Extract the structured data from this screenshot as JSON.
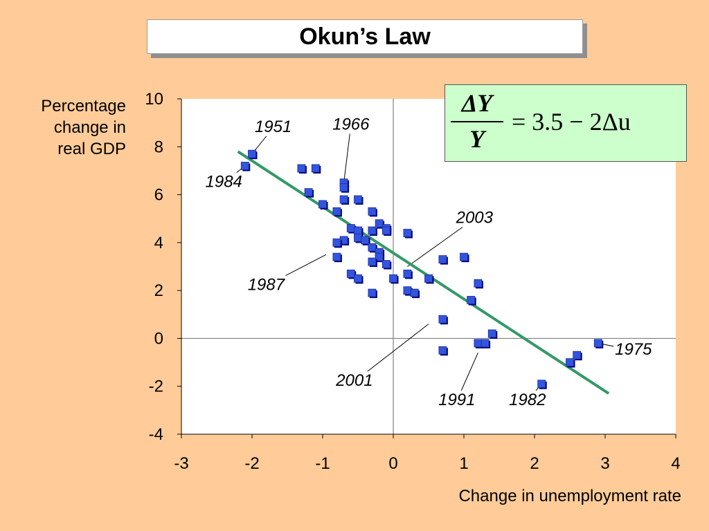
{
  "slide": {
    "title": "Okun’s Law",
    "background_color": "#FFCC99"
  },
  "formula": {
    "numerator": "ΔY",
    "denominator": "Y",
    "rhs": "= 3.5 − 2Δu",
    "box_color": "#CCFFCC"
  },
  "chart_data": {
    "type": "scatter",
    "title": "Okun’s Law",
    "xlabel": "Change in unemployment rate",
    "ylabel": "Percentage change in real GDP",
    "ylabel_lines": [
      "Percentage",
      "change in",
      "real GDP"
    ],
    "xlim": [
      -3,
      4
    ],
    "ylim": [
      -4,
      10
    ],
    "xticks": [
      "-3",
      "-2",
      "-1",
      "0",
      "1",
      "2",
      "3",
      "4"
    ],
    "yticks": [
      "10",
      "8",
      "6",
      "4",
      "2",
      "0",
      "-2",
      "-4"
    ],
    "grid": false,
    "marker_color": "#3355DD",
    "points": [
      {
        "x": -2.1,
        "y": 7.2
      },
      {
        "x": -2.0,
        "y": 7.7
      },
      {
        "x": -1.3,
        "y": 7.1
      },
      {
        "x": -1.1,
        "y": 7.1
      },
      {
        "x": -0.7,
        "y": 6.5
      },
      {
        "x": -0.7,
        "y": 6.3
      },
      {
        "x": -1.2,
        "y": 6.1
      },
      {
        "x": -0.7,
        "y": 5.8
      },
      {
        "x": -0.5,
        "y": 5.8
      },
      {
        "x": -1.0,
        "y": 5.6
      },
      {
        "x": -0.8,
        "y": 5.3
      },
      {
        "x": -0.3,
        "y": 5.3
      },
      {
        "x": -0.6,
        "y": 4.6
      },
      {
        "x": -0.5,
        "y": 4.5
      },
      {
        "x": -0.3,
        "y": 4.5
      },
      {
        "x": -0.2,
        "y": 4.8
      },
      {
        "x": -0.1,
        "y": 4.6
      },
      {
        "x": -0.1,
        "y": 4.5
      },
      {
        "x": 0.2,
        "y": 4.4
      },
      {
        "x": -0.5,
        "y": 4.2
      },
      {
        "x": -0.4,
        "y": 4.1
      },
      {
        "x": -0.7,
        "y": 4.1
      },
      {
        "x": -0.8,
        "y": 4.0
      },
      {
        "x": -0.3,
        "y": 3.8
      },
      {
        "x": -0.2,
        "y": 3.6
      },
      {
        "x": -0.2,
        "y": 3.4
      },
      {
        "x": -0.8,
        "y": 3.4
      },
      {
        "x": -0.3,
        "y": 3.2
      },
      {
        "x": -0.1,
        "y": 3.1
      },
      {
        "x": 0.7,
        "y": 3.3
      },
      {
        "x": 1.0,
        "y": 3.4
      },
      {
        "x": -0.6,
        "y": 2.7
      },
      {
        "x": -0.5,
        "y": 2.5
      },
      {
        "x": 0.0,
        "y": 2.5
      },
      {
        "x": 0.2,
        "y": 2.7
      },
      {
        "x": 0.5,
        "y": 2.5
      },
      {
        "x": 1.2,
        "y": 2.3
      },
      {
        "x": 0.2,
        "y": 2.0
      },
      {
        "x": 0.3,
        "y": 1.9
      },
      {
        "x": -0.3,
        "y": 1.9
      },
      {
        "x": 1.1,
        "y": 1.6
      },
      {
        "x": 0.7,
        "y": 0.8
      },
      {
        "x": 1.4,
        "y": 0.2
      },
      {
        "x": 1.2,
        "y": -0.2
      },
      {
        "x": 1.3,
        "y": -0.2
      },
      {
        "x": 0.7,
        "y": -0.5
      },
      {
        "x": 2.9,
        "y": -0.2
      },
      {
        "x": 2.6,
        "y": -0.7
      },
      {
        "x": 2.5,
        "y": -1.0
      },
      {
        "x": 2.1,
        "y": -1.9
      }
    ],
    "fit_line": {
      "from": [
        -2.2,
        7.8
      ],
      "to": [
        3.05,
        -2.3
      ],
      "color": "#339966"
    },
    "annotations": [
      {
        "label": "1951",
        "point": [
          -2.0,
          7.7
        ],
        "text_at": [
          -1.7,
          8.8
        ]
      },
      {
        "label": "1966",
        "point": [
          -0.7,
          6.5
        ],
        "text_at": [
          -0.6,
          8.9
        ]
      },
      {
        "label": "1984",
        "point": [
          -2.1,
          7.2
        ],
        "text_at": [
          -2.4,
          6.5
        ]
      },
      {
        "label": "2003",
        "point": [
          0.2,
          3.0
        ],
        "text_at": [
          1.15,
          5.0
        ]
      },
      {
        "label": "1987",
        "point": [
          -0.95,
          3.5
        ],
        "text_at": [
          -1.8,
          2.2
        ]
      },
      {
        "label": "2001",
        "point": [
          0.5,
          0.6
        ],
        "text_at": [
          -0.55,
          -1.8
        ]
      },
      {
        "label": "1991",
        "point": [
          1.2,
          -0.6
        ],
        "text_at": [
          0.9,
          -2.6
        ]
      },
      {
        "label": "1982",
        "point": [
          2.1,
          -1.9
        ],
        "text_at": [
          1.9,
          -2.6
        ]
      },
      {
        "label": "1975",
        "point": [
          2.9,
          -0.2
        ],
        "text_at": [
          3.4,
          -0.5
        ]
      }
    ]
  }
}
